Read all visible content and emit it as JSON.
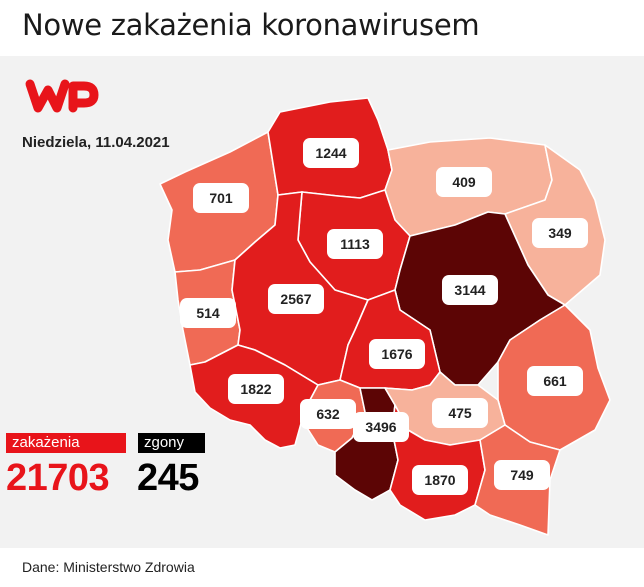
{
  "title": "Nowe zakażenia koronawirusem",
  "date": "Niedziela, 11.04.2021",
  "brand": "WP",
  "summary": {
    "cases_label": "zakażenia",
    "cases_value": "21703",
    "deaths_label": "zgony",
    "deaths_value": "245"
  },
  "source": "Dane: Ministerstwo Zdrowia",
  "colors": {
    "darkest": "#5c0505",
    "dark_red": "#e11d1d",
    "medium": "#f06a55",
    "light": "#f7b29b",
    "accent": "#e8141a"
  },
  "regions": [
    {
      "id": "pomorskie",
      "value": "1244",
      "shade": "dark_red"
    },
    {
      "id": "zachodniopomorskie",
      "value": "701",
      "shade": "medium"
    },
    {
      "id": "warminsko-mazurskie",
      "value": "409",
      "shade": "light"
    },
    {
      "id": "podlaskie",
      "value": "349",
      "shade": "light"
    },
    {
      "id": "kujawsko-pomorskie",
      "value": "1113",
      "shade": "dark_red"
    },
    {
      "id": "lubuskie",
      "value": "514",
      "shade": "medium"
    },
    {
      "id": "wielkopolskie",
      "value": "2567",
      "shade": "dark_red"
    },
    {
      "id": "mazowieckie",
      "value": "3144",
      "shade": "darkest"
    },
    {
      "id": "lodzkie",
      "value": "1676",
      "shade": "dark_red"
    },
    {
      "id": "lubelskie",
      "value": "661",
      "shade": "medium"
    },
    {
      "id": "dolnoslaskie",
      "value": "1822",
      "shade": "dark_red"
    },
    {
      "id": "opolskie",
      "value": "632",
      "shade": "medium"
    },
    {
      "id": "slaskie",
      "value": "3496",
      "shade": "darkest"
    },
    {
      "id": "swietokrzyskie",
      "value": "475",
      "shade": "light"
    },
    {
      "id": "malopolskie",
      "value": "1870",
      "shade": "dark_red"
    },
    {
      "id": "podkarpackie",
      "value": "749",
      "shade": "medium"
    }
  ]
}
